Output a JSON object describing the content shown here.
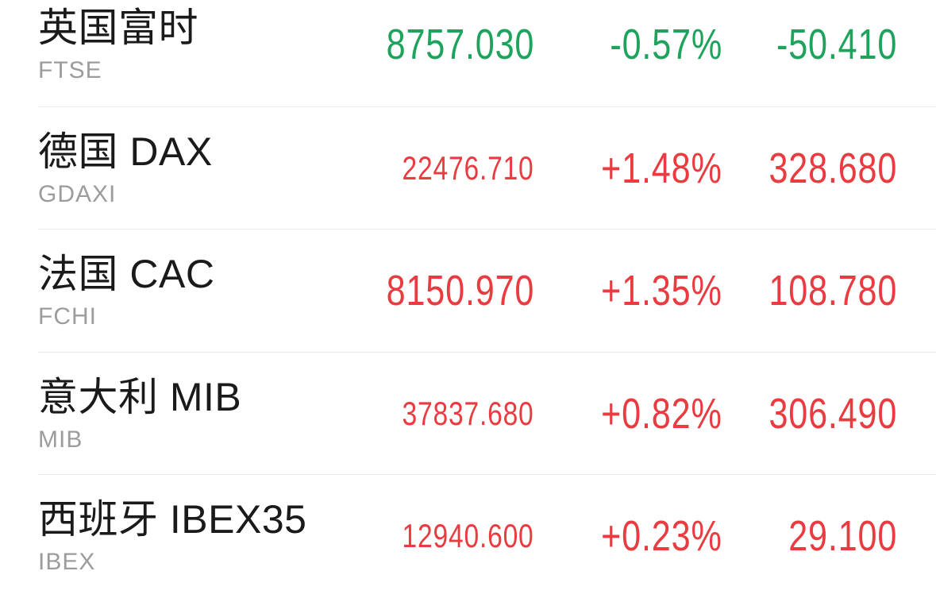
{
  "colors": {
    "up": "#e93b40",
    "down": "#1da35c",
    "name": "#1a1a1a",
    "code": "#9c9c9c",
    "divider": "#ebebeb",
    "background": "#ffffff"
  },
  "indices": [
    {
      "name": "英国富时",
      "code": "FTSE",
      "price": "8757.030",
      "change_percent": "-0.57%",
      "change_amount": "-50.410",
      "trend": "down"
    },
    {
      "name": "德国 DAX",
      "code": "GDAXI",
      "price": "22476.710",
      "change_percent": "+1.48%",
      "change_amount": "328.680",
      "trend": "up"
    },
    {
      "name": "法国 CAC",
      "code": "FCHI",
      "price": "8150.970",
      "change_percent": "+1.35%",
      "change_amount": "108.780",
      "trend": "up"
    },
    {
      "name": "意大利 MIB",
      "code": "MIB",
      "price": "37837.680",
      "change_percent": "+0.82%",
      "change_amount": "306.490",
      "trend": "up"
    },
    {
      "name": "西班牙 IBEX35",
      "code": "IBEX",
      "price": "12940.600",
      "change_percent": "+0.23%",
      "change_amount": "29.100",
      "trend": "up"
    }
  ]
}
